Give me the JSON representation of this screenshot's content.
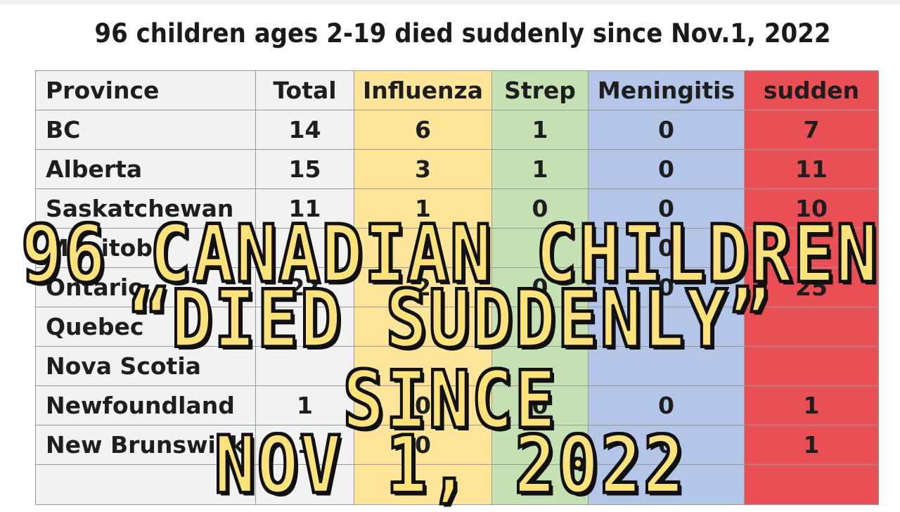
{
  "title": "96 children ages 2-19 died suddenly since Nov.1, 2022",
  "table": {
    "headers": [
      "Province",
      "Total",
      "Influenza",
      "Strep",
      "Meningitis",
      "sudden"
    ],
    "rows": [
      [
        "BC",
        "14",
        "6",
        "1",
        "0",
        "7"
      ],
      [
        "Alberta",
        "15",
        "3",
        "1",
        "0",
        "11"
      ],
      [
        "Saskatchewan",
        "11",
        "1",
        "0",
        "0",
        "10"
      ],
      [
        "Manitoba",
        "",
        "",
        "",
        "0",
        ""
      ],
      [
        "Ontario",
        "27",
        "2",
        "0",
        "0",
        "25"
      ],
      [
        "Quebec",
        "",
        "",
        "",
        "",
        ""
      ],
      [
        "Nova Scotia",
        "",
        "",
        "",
        "",
        ""
      ],
      [
        "Newfoundland",
        "1",
        "0",
        "0",
        "0",
        "1"
      ],
      [
        "New Brunswick",
        "1",
        "0",
        "",
        "0",
        "1"
      ],
      [
        "",
        "",
        "",
        "",
        "",
        ""
      ]
    ],
    "column_colors": [
      "#f2f2f2",
      "#f2f2f2",
      "#fee599",
      "#c5e0b3",
      "#b4c6e7",
      "#e94f54"
    ]
  },
  "overlay": {
    "line1": "96 CANADIAN CHILDREN",
    "line2": "“DIED SUDDENLY” SINCE",
    "line3": "NOV 1, 2022",
    "fill_color": "#fde27c",
    "stroke_color": "#111111"
  }
}
